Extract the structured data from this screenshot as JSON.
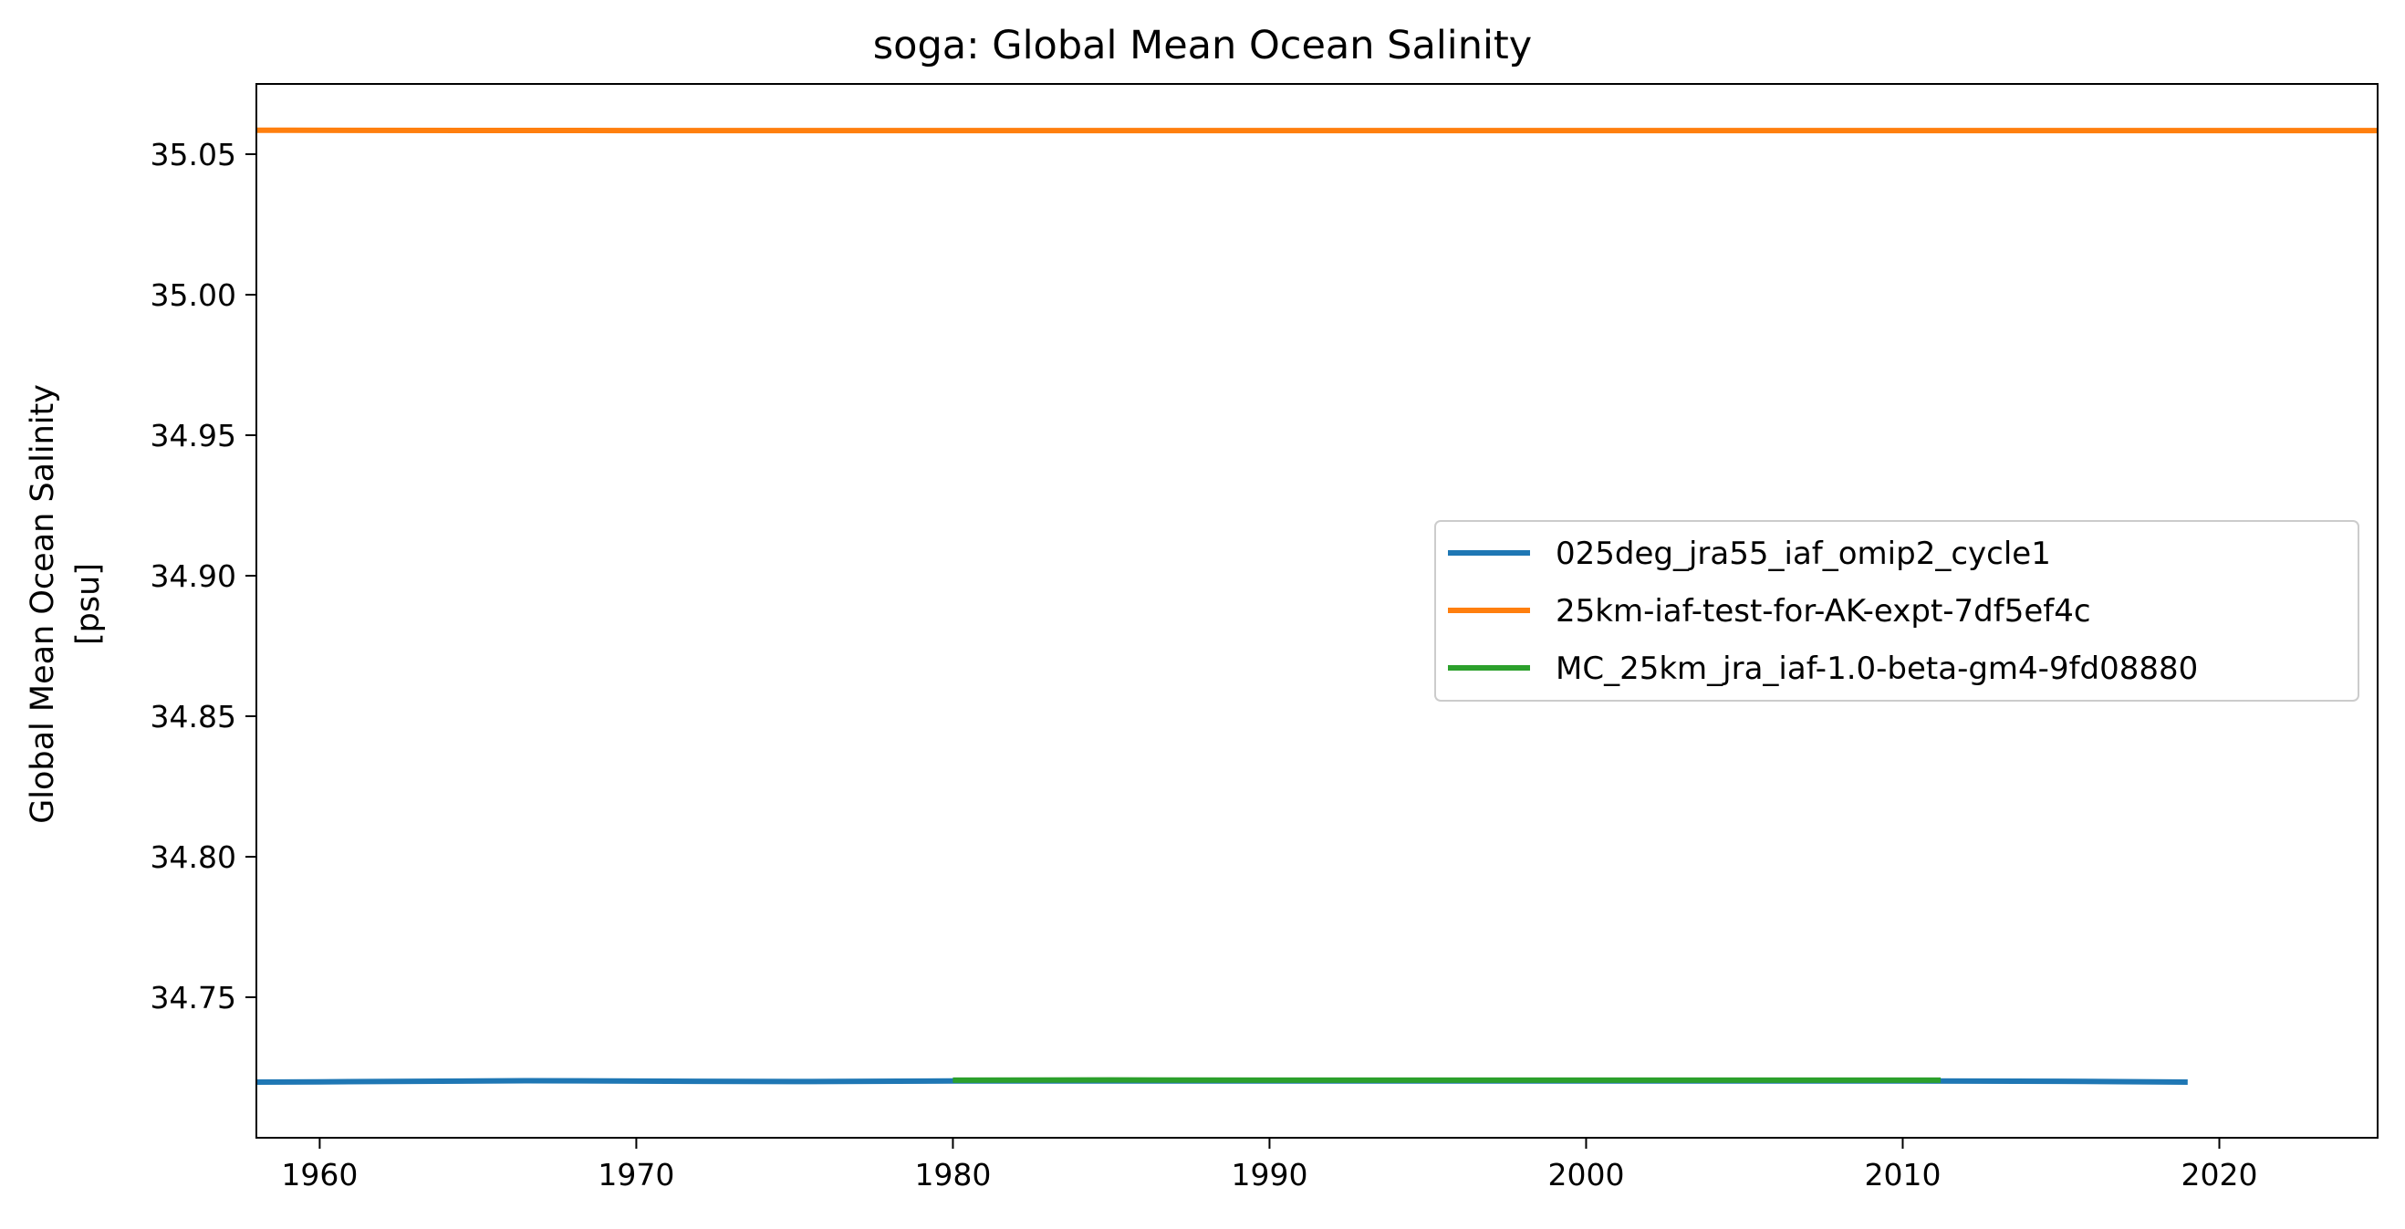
{
  "chart_data": {
    "type": "line",
    "title": "soga: Global Mean Ocean Salinity",
    "ylabel_lines": [
      "Global Mean Ocean Salinity",
      "[psu]"
    ],
    "xlabel": "",
    "xlim": [
      1958,
      2025
    ],
    "ylim": [
      34.7,
      35.075
    ],
    "xticks": [
      1960,
      1970,
      1980,
      1990,
      2000,
      2010,
      2020
    ],
    "yticks": [
      "34.75",
      "34.80",
      "34.85",
      "34.90",
      "34.95",
      "35.00",
      "35.05"
    ],
    "legend_position": "center-right",
    "series": [
      {
        "name": "025deg_jra55_iaf_omip2_cycle1",
        "color": "#1f77b4",
        "x": [
          1958,
          1960,
          1966.5,
          1975,
          1980,
          1990,
          2000,
          2010,
          2015,
          2019
        ],
        "y": [
          34.7198,
          34.7199,
          34.7203,
          34.72,
          34.7202,
          34.7202,
          34.7202,
          34.7202,
          34.7201,
          34.7198
        ]
      },
      {
        "name": "25km-iaf-test-for-AK-expt-7df5ef4c",
        "color": "#ff7f0e",
        "x": [
          1958,
          1959,
          1970,
          1990,
          2010,
          2025
        ],
        "y": [
          35.0585,
          35.0585,
          35.0584,
          35.0584,
          35.0584,
          35.0584
        ]
      },
      {
        "name": "MC_25km_jra_iaf-1.0-beta-gm4-9fd08880",
        "color": "#2ca02c",
        "x": [
          1980,
          1985,
          1990,
          2000,
          2005,
          2011.2
        ],
        "y": [
          34.7205,
          34.7206,
          34.7205,
          34.7205,
          34.7205,
          34.7205
        ]
      }
    ]
  }
}
